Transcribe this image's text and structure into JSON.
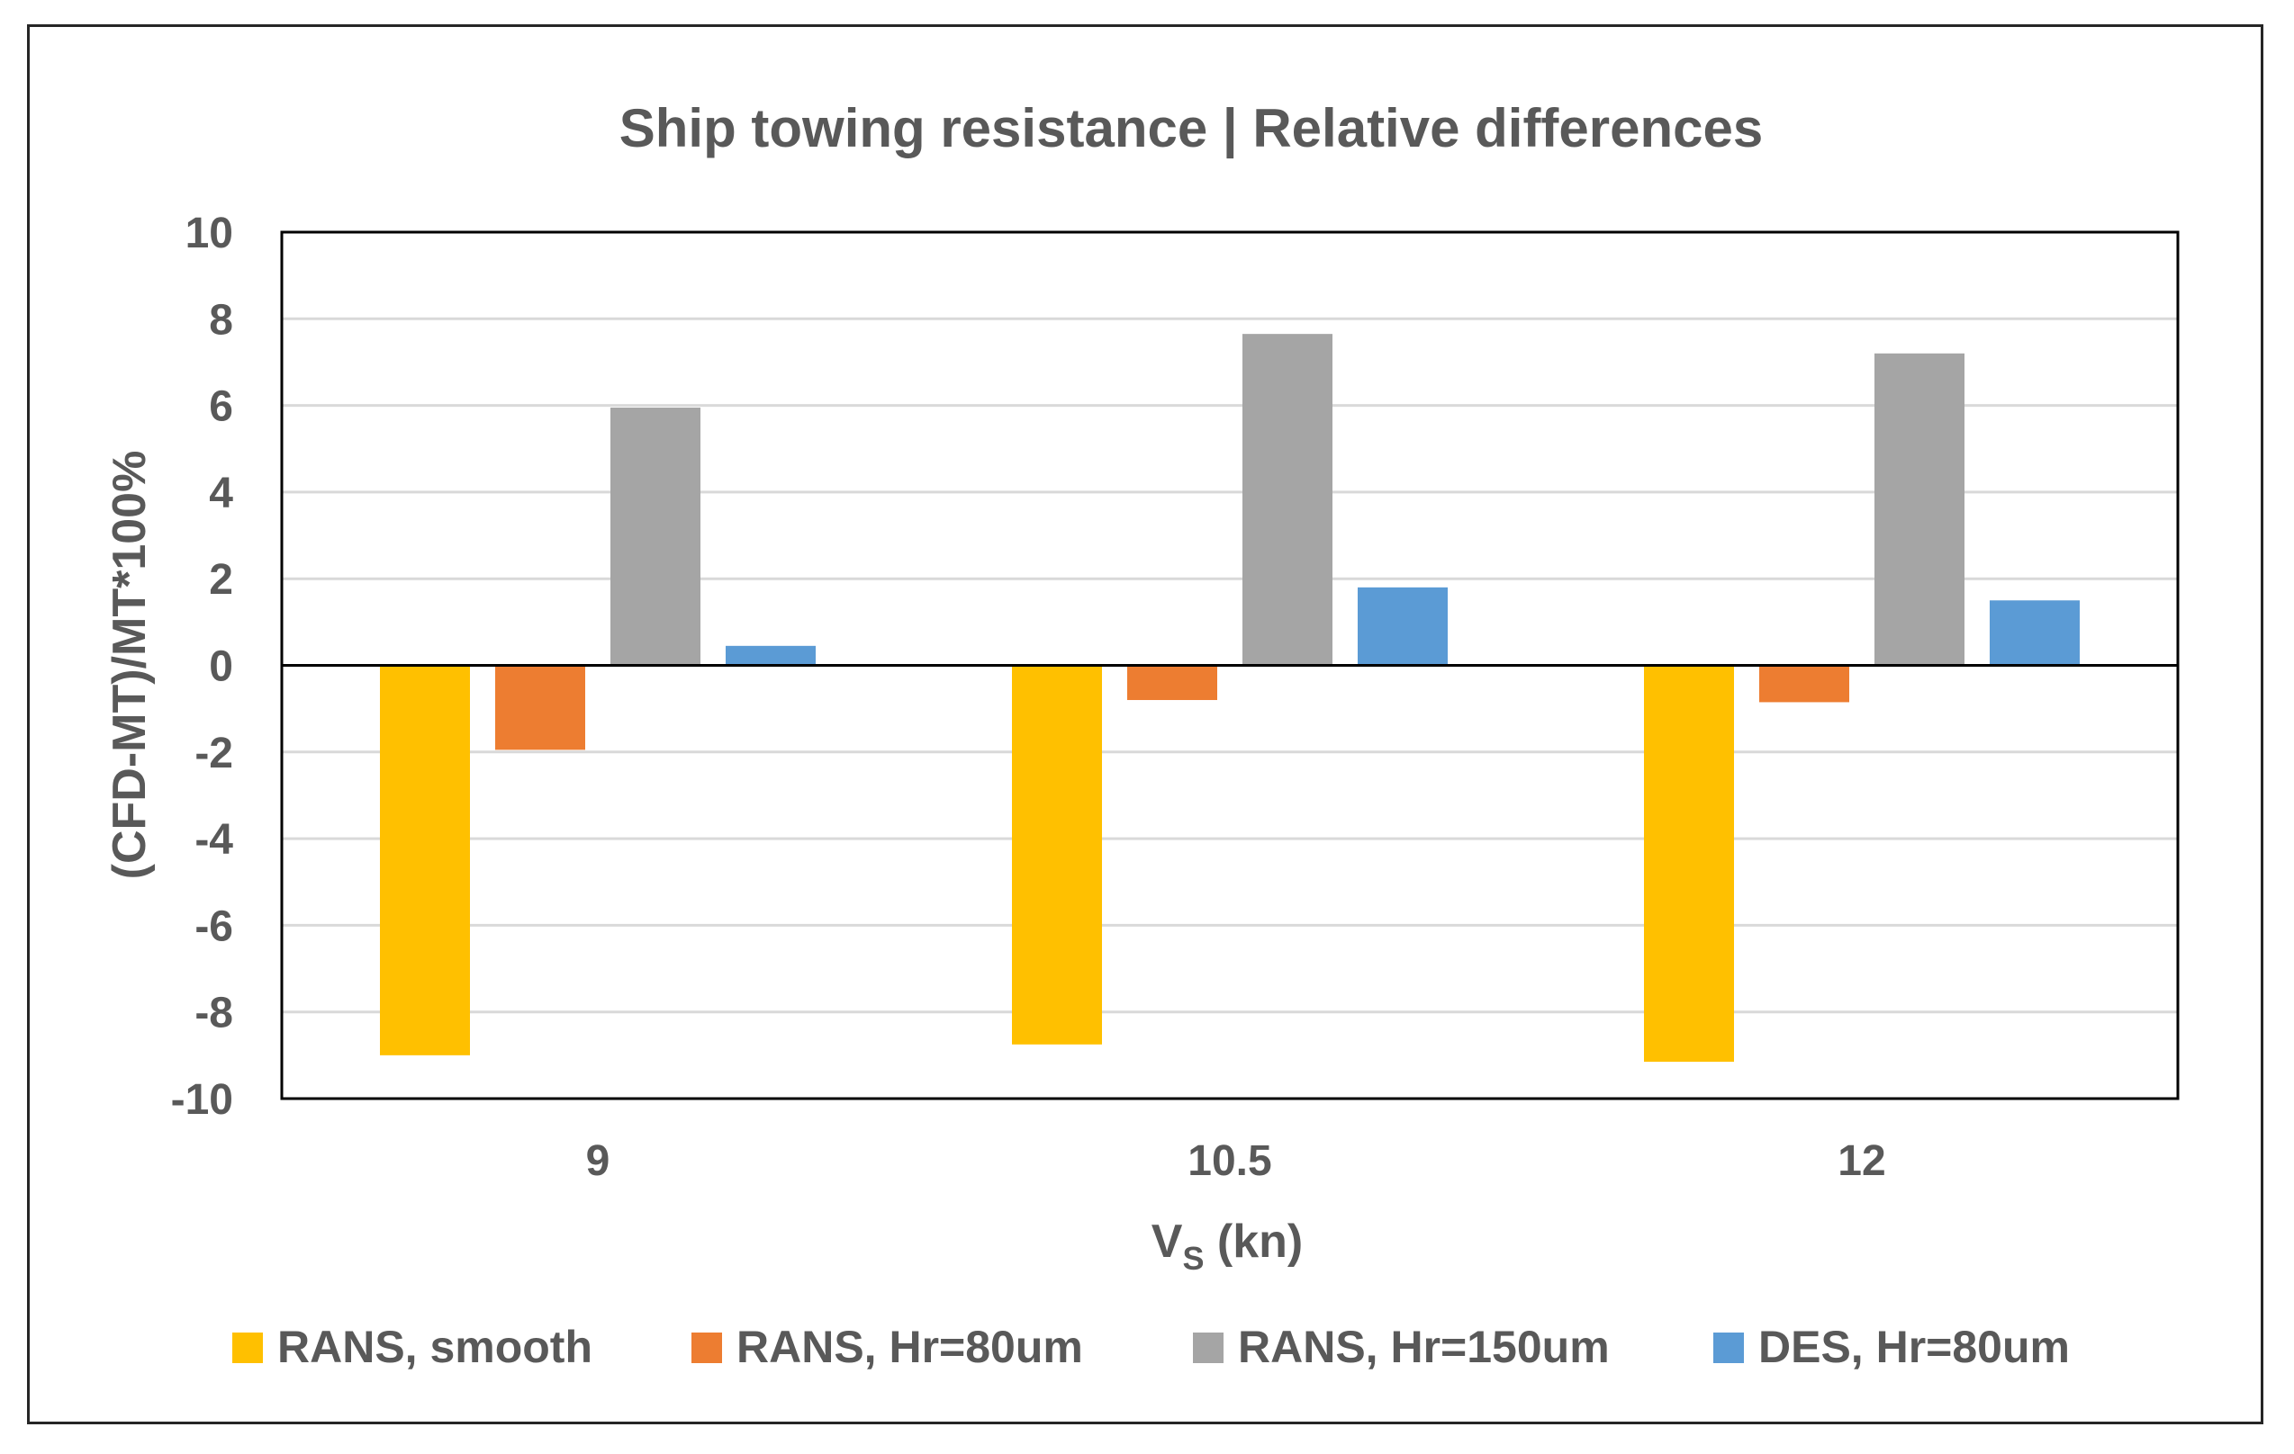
{
  "chart_data": {
    "type": "bar",
    "title": "Ship towing resistance | Relative differences",
    "xlabel_main": "V",
    "xlabel_sub": "S",
    "xlabel_unit": " (kn)",
    "ylabel": "(CFD-MT)/MT*100%",
    "categories": [
      "9",
      "10.5",
      "12"
    ],
    "ylim": [
      -10,
      10
    ],
    "yticks": [
      10,
      8,
      6,
      4,
      2,
      0,
      -2,
      -4,
      -6,
      -8,
      -10
    ],
    "grid": true,
    "legend_position": "bottom",
    "series": [
      {
        "name": "RANS, smooth",
        "color": "#FFC000",
        "values": [
          -9.0,
          -8.75,
          -9.15
        ]
      },
      {
        "name": "RANS, Hr=80um",
        "color": "#ED7D31",
        "values": [
          -1.95,
          -0.8,
          -0.85
        ]
      },
      {
        "name": "RANS, Hr=150um",
        "color": "#A5A5A5",
        "values": [
          5.95,
          7.65,
          7.2
        ]
      },
      {
        "name": "DES, Hr=80um",
        "color": "#5B9BD5",
        "values": [
          0.45,
          1.8,
          1.5
        ]
      }
    ]
  }
}
